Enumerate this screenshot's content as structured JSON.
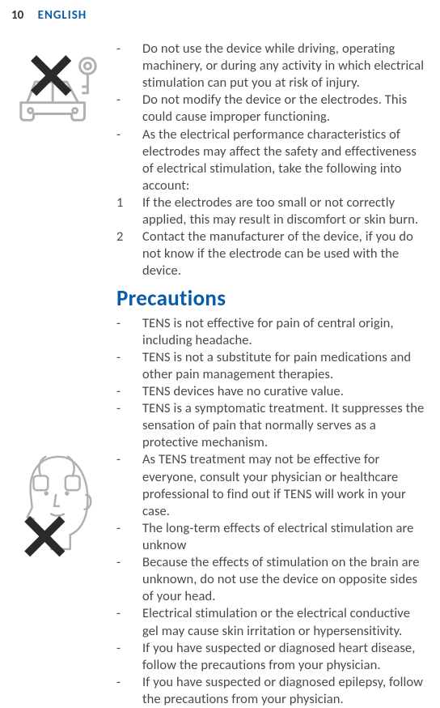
{
  "header": {
    "page_number": "10",
    "language": "ENGLISH"
  },
  "block1": {
    "items": [
      {
        "marker": "-",
        "text": "Do not use the device while driving, operating machinery, or during any activity in which electrical stimulation can put you at risk of injury."
      },
      {
        "marker": "-",
        "text": "Do not modify the device or the electrodes. This could cause improper functioning."
      },
      {
        "marker": "-",
        "text": "As the electrical performance characteristics of electrodes may affect the safety and effectiveness of electrical stimulation, take the following into account:"
      },
      {
        "marker": "1",
        "text": "If the electrodes are too small or not correctly applied, this may result in discomfort or skin burn."
      },
      {
        "marker": "2",
        "text": "Contact the manufacturer of the device, if you do not know if the electrode can be used with the device."
      }
    ]
  },
  "heading": "Precautions",
  "block2": {
    "items": [
      {
        "marker": "-",
        "text": "TENS is not effective for pain of central origin, including headache."
      },
      {
        "marker": "-",
        "text": "TENS is not a substitute for pain medications and other pain management therapies."
      },
      {
        "marker": "-",
        "text": "TENS devices have no curative value."
      },
      {
        "marker": "-",
        "text": "TENS is a symptomatic treatment. It suppresses the sensation of pain that normally serves as a protective mechanism."
      },
      {
        "marker": "-",
        "text": "As TENS treatment may not be effective for everyone, consult your physician or healthcare professional to find out if TENS will work in your case."
      },
      {
        "marker": "-",
        "text": "The long-term effects of electrical stimulation are unknow"
      },
      {
        "marker": "-",
        "text": "Because the effects of stimulation on the brain are unknown, do not use the device on opposite sides of your head."
      },
      {
        "marker": "-",
        "text": "Electrical stimulation or the electrical conductive gel may cause skin irritation or hypersensitivity."
      },
      {
        "marker": "-",
        "text": "If you have suspected or diagnosed heart disease, follow the precautions from your physician."
      },
      {
        "marker": "-",
        "text": "If you have suspected or diagnosed epilepsy, follow the precautions from your physician."
      }
    ]
  },
  "colors": {
    "brand_blue": "#0a5ca8",
    "body_text": "#4a4a4a",
    "line_gray": "#b0b0b0"
  }
}
